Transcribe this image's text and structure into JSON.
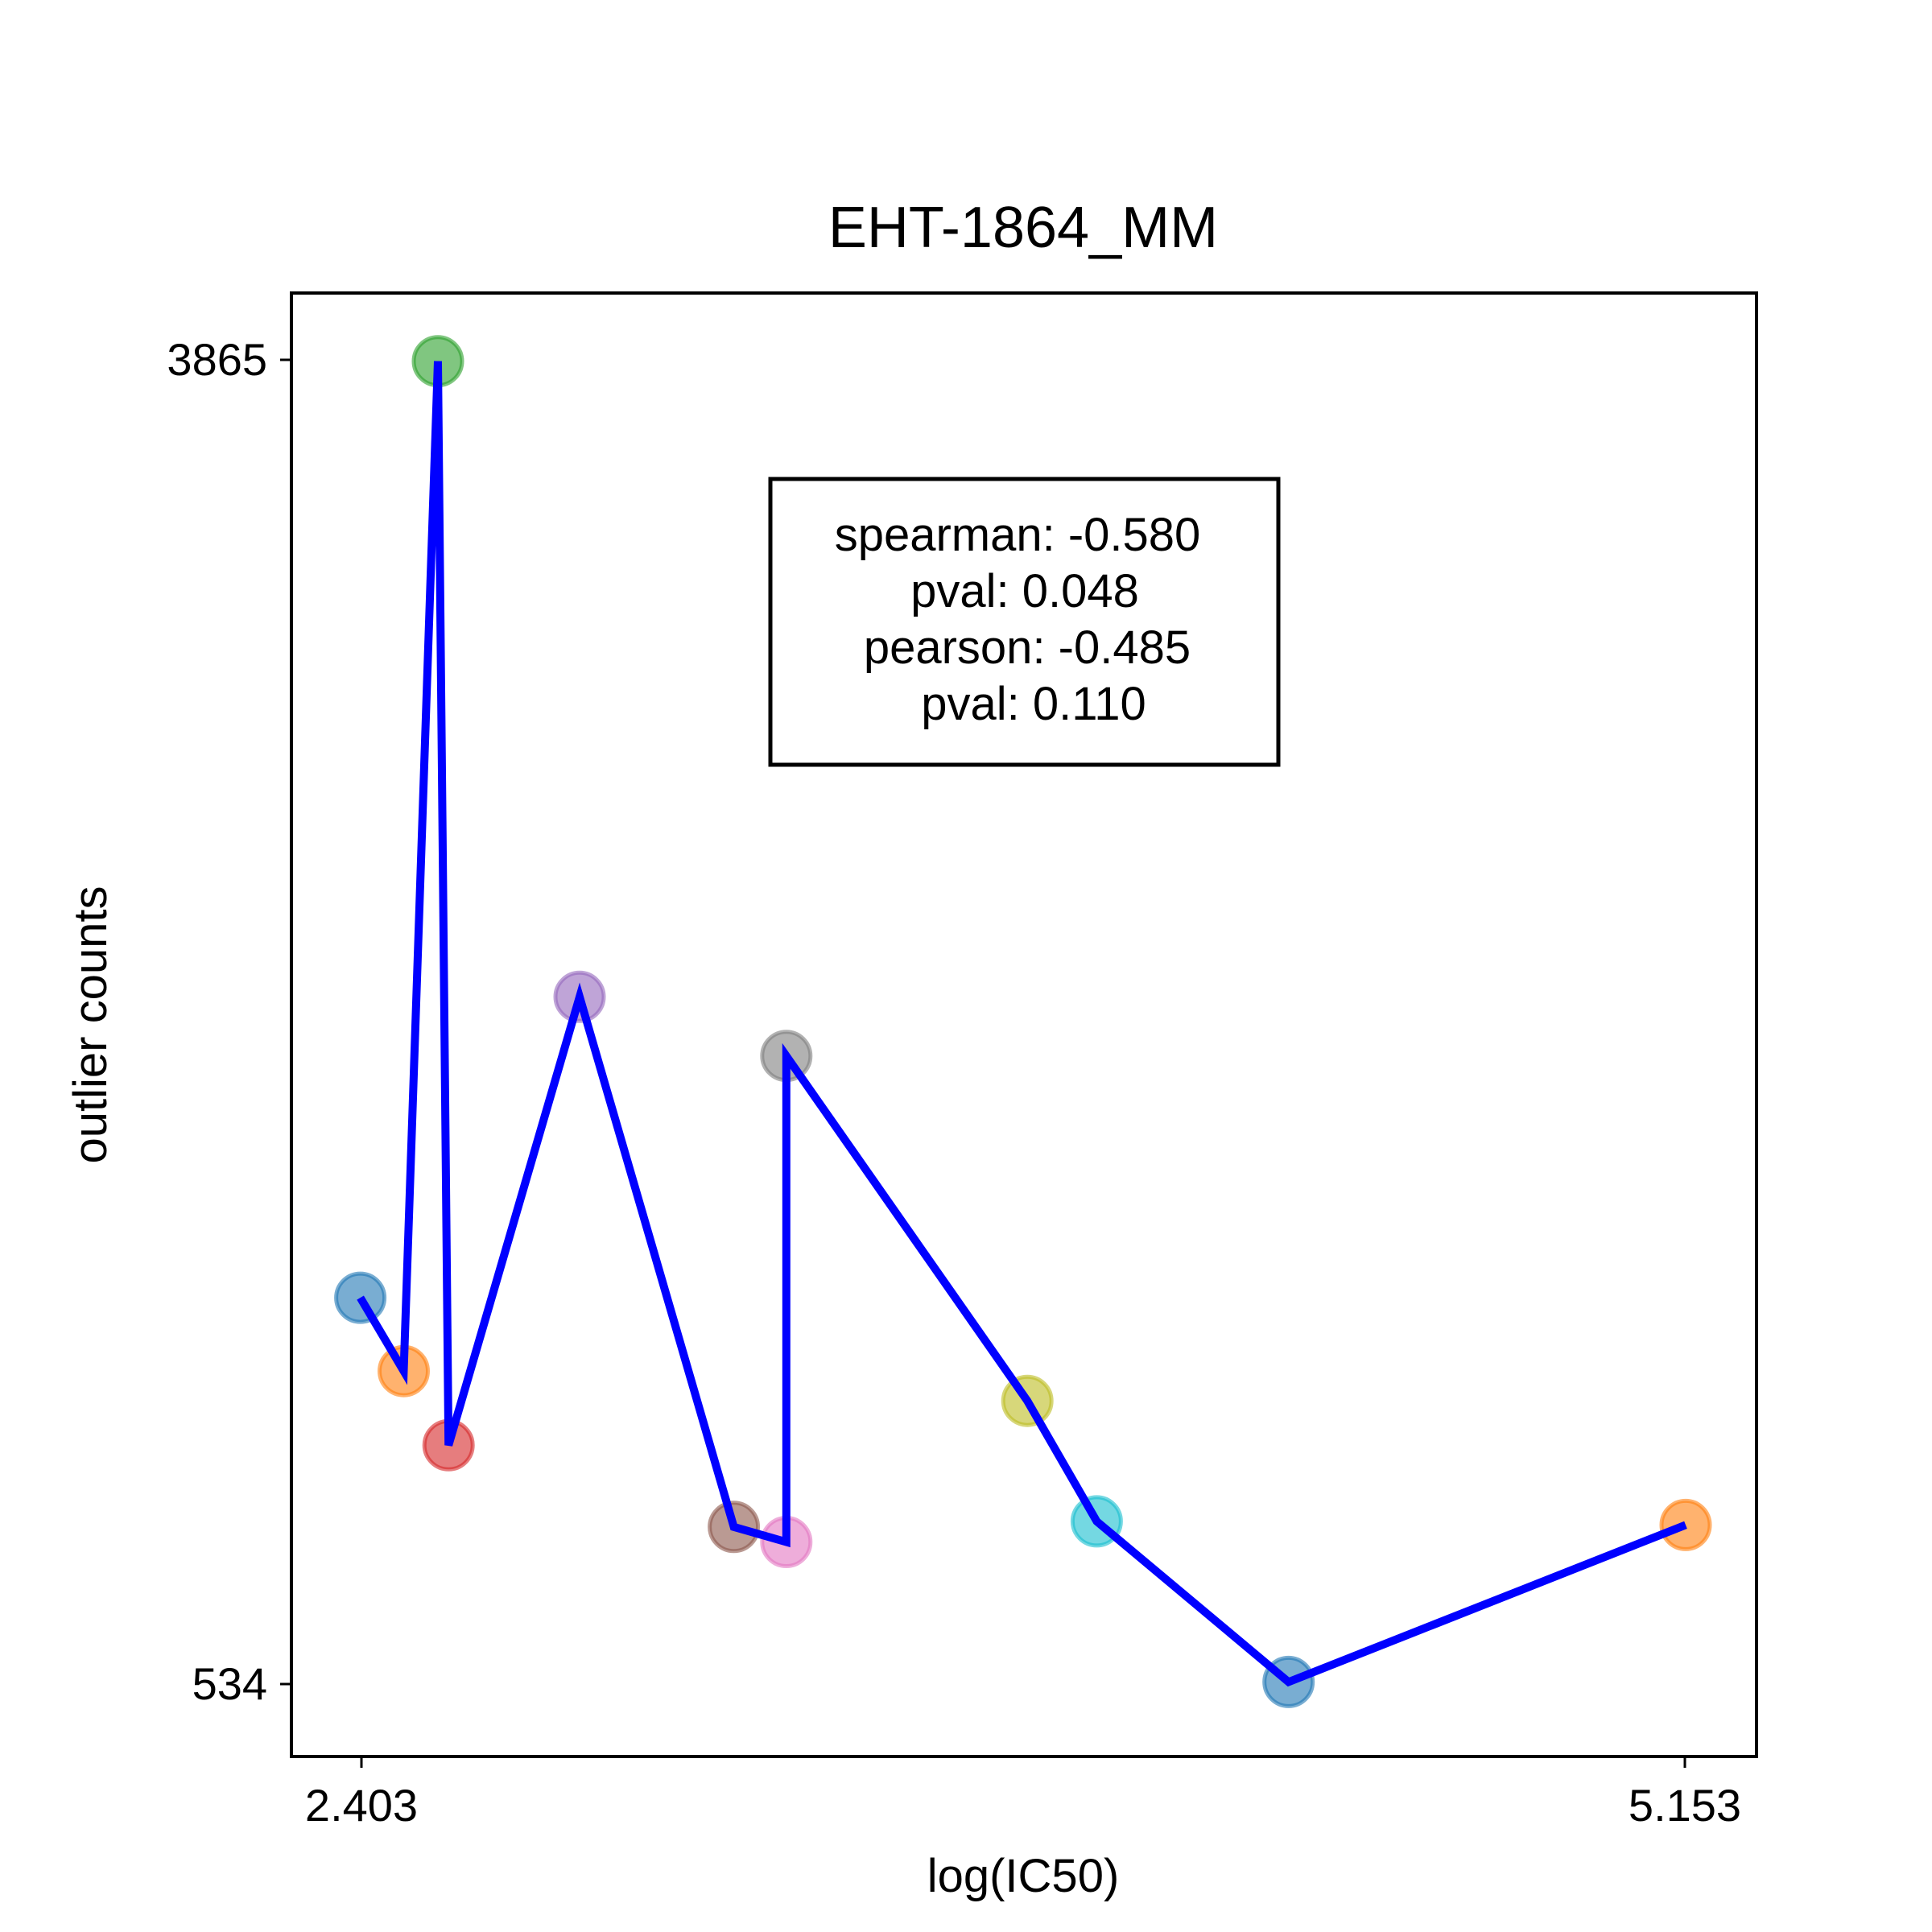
{
  "chart_data": {
    "type": "scatter",
    "title": "EHT-1864_MM",
    "xlabel": "log(IC50)",
    "ylabel": "outlier counts",
    "x_ticks": [
      "2.403",
      "5.153"
    ],
    "y_ticks": [
      "3865",
      "534"
    ],
    "xlim": [
      2.26,
      5.3
    ],
    "ylim": [
      346,
      4037
    ],
    "grid": false,
    "line_color": "#0000ff",
    "stats_box": {
      "line1": "spearman: -0.580",
      "line2": "pval: 0.048",
      "line3": "pearson: -0.485",
      "line4": "pval: 0.110"
    },
    "points": [
      {
        "x": 2.403,
        "y": 1503,
        "color": "#1f77b4"
      },
      {
        "x": 2.493,
        "y": 1318,
        "color": "#ff7f0e"
      },
      {
        "x": 2.564,
        "y": 3865,
        "color": "#2ca02c"
      },
      {
        "x": 2.586,
        "y": 1131,
        "color": "#d62728"
      },
      {
        "x": 2.858,
        "y": 2262,
        "color": "#9467bd"
      },
      {
        "x": 3.178,
        "y": 925,
        "color": "#8c564b"
      },
      {
        "x": 3.287,
        "y": 887,
        "color": "#e377c2"
      },
      {
        "x": 3.287,
        "y": 2113,
        "color": "#7f7f7f"
      },
      {
        "x": 3.787,
        "y": 1243,
        "color": "#bcbd22"
      },
      {
        "x": 3.931,
        "y": 939,
        "color": "#17becf"
      },
      {
        "x": 4.329,
        "y": 534,
        "color": "#1f77b4"
      },
      {
        "x": 5.153,
        "y": 930,
        "color": "#ff7f0e"
      }
    ]
  }
}
